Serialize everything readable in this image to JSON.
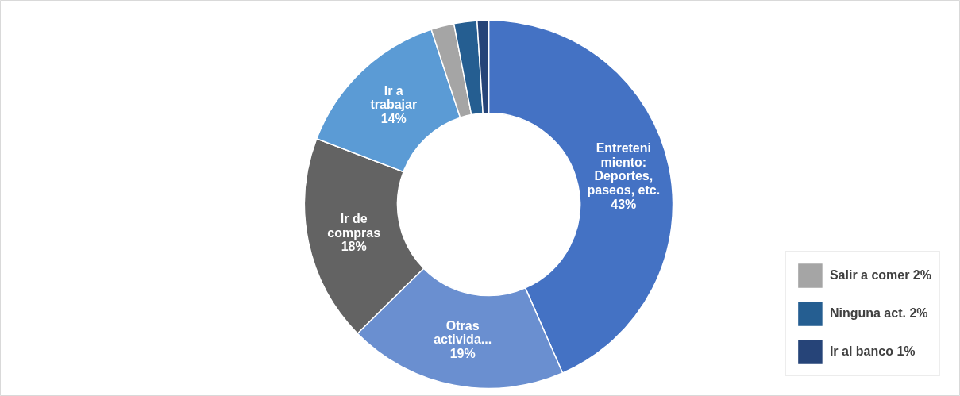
{
  "chart_data": {
    "type": "donut",
    "categories": [
      "Entretenimiento: Deportes, paseos, etc.",
      "Otras activida...",
      "Ir de compras",
      "Ir a trabajar",
      "Salir a comer",
      "Ninguna act.",
      "Ir al banco"
    ],
    "values": [
      43,
      19,
      18,
      14,
      2,
      2,
      1
    ],
    "value_labels": [
      "43%",
      "19%",
      "18%",
      "14%",
      "2%",
      "2%",
      "1%"
    ],
    "colors": [
      "#4472c4",
      "#6a8fd0",
      "#636363",
      "#5b9bd5",
      "#a5a5a5",
      "#255e91",
      "#264478"
    ],
    "legend": "bottom right"
  }
}
